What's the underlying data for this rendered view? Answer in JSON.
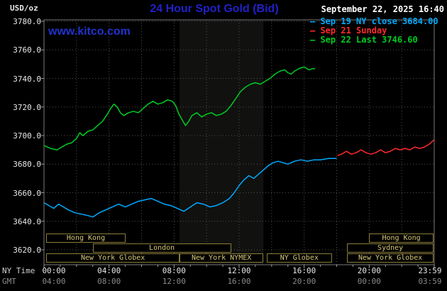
{
  "header": {
    "unit_label": "USD/oz",
    "title": "24 Hour Spot Gold (Bid)",
    "datetime": "September 22, 2025 16:40",
    "watermark": "www.kitco.com"
  },
  "colors": {
    "title_blue": "#2121c8",
    "watermark_blue": "#2233cc",
    "frame": "#7a7a7a",
    "grid": "#4f4f4f",
    "session_border": "#8a7d3a",
    "session_text": "#d8c878"
  },
  "legend": [
    {
      "label": "Sep 19 NY close 3684.00",
      "color": "#00aaff"
    },
    {
      "label": "Sep 21 Sunday",
      "color": "#ff2a2a"
    },
    {
      "label": "Sep 22 Last 3746.60",
      "color": "#00cc22"
    }
  ],
  "chart_data": {
    "type": "line",
    "title": "24 Hour Spot Gold (Bid)",
    "ylabel": "USD/oz",
    "xlabel_ny": "NY Time",
    "xlabel_gmt": "GMT",
    "ylim": [
      3620,
      3780
    ],
    "y_ticks": [
      3620,
      3640,
      3660,
      3680,
      3700,
      3720,
      3740,
      3760,
      3780
    ],
    "x_ticks": [
      {
        "hour": 0,
        "ny": "00:00",
        "gmt": "04:00"
      },
      {
        "hour": 4,
        "ny": "04:00",
        "gmt": "08:00"
      },
      {
        "hour": 8,
        "ny": "08:00",
        "gmt": "12:00"
      },
      {
        "hour": 12,
        "ny": "12:00",
        "gmt": "16:00"
      },
      {
        "hour": 16,
        "ny": "16:00",
        "gmt": "20:00"
      },
      {
        "hour": 20,
        "ny": "20:00",
        "gmt": "00:00"
      },
      {
        "hour": 23.98,
        "ny": "23:59",
        "gmt": "03:59"
      }
    ],
    "grid": true,
    "shaded_band": {
      "start_hour": 8.33,
      "end_hour": 13.5
    },
    "series": [
      {
        "name": "Sep 19 NY close",
        "color": "#00aaff",
        "close": 3684.0,
        "points": [
          [
            0,
            3653
          ],
          [
            0.3,
            3651
          ],
          [
            0.6,
            3649
          ],
          [
            0.9,
            3652
          ],
          [
            1.2,
            3650
          ],
          [
            1.5,
            3648
          ],
          [
            1.9,
            3646
          ],
          [
            2.3,
            3645
          ],
          [
            2.7,
            3644
          ],
          [
            3.0,
            3643
          ],
          [
            3.4,
            3646
          ],
          [
            3.8,
            3648
          ],
          [
            4.2,
            3650
          ],
          [
            4.6,
            3652
          ],
          [
            5.0,
            3650
          ],
          [
            5.4,
            3652
          ],
          [
            5.8,
            3654
          ],
          [
            6.2,
            3655
          ],
          [
            6.6,
            3656
          ],
          [
            7.0,
            3654
          ],
          [
            7.4,
            3652
          ],
          [
            7.8,
            3651
          ],
          [
            8.2,
            3649
          ],
          [
            8.6,
            3647
          ],
          [
            9.0,
            3650
          ],
          [
            9.4,
            3653
          ],
          [
            9.8,
            3652
          ],
          [
            10.2,
            3650
          ],
          [
            10.6,
            3651
          ],
          [
            11.0,
            3653
          ],
          [
            11.4,
            3656
          ],
          [
            11.7,
            3660
          ],
          [
            12.0,
            3665
          ],
          [
            12.3,
            3669
          ],
          [
            12.6,
            3672
          ],
          [
            12.9,
            3670
          ],
          [
            13.2,
            3673
          ],
          [
            13.5,
            3676
          ],
          [
            13.8,
            3679
          ],
          [
            14.1,
            3681
          ],
          [
            14.4,
            3682
          ],
          [
            14.7,
            3681
          ],
          [
            15.0,
            3680
          ],
          [
            15.4,
            3682
          ],
          [
            15.8,
            3683
          ],
          [
            16.2,
            3682
          ],
          [
            16.6,
            3683
          ],
          [
            17.0,
            3683
          ],
          [
            17.5,
            3684
          ],
          [
            18.0,
            3684
          ]
        ]
      },
      {
        "name": "Sep 21 Sunday",
        "color": "#ff2a2a",
        "points": [
          [
            18.05,
            3686
          ],
          [
            18.3,
            3687
          ],
          [
            18.6,
            3689
          ],
          [
            18.9,
            3687
          ],
          [
            19.2,
            3688
          ],
          [
            19.5,
            3690
          ],
          [
            19.8,
            3688
          ],
          [
            20.1,
            3687
          ],
          [
            20.4,
            3688
          ],
          [
            20.7,
            3690
          ],
          [
            21.0,
            3688
          ],
          [
            21.3,
            3689
          ],
          [
            21.6,
            3691
          ],
          [
            21.9,
            3690
          ],
          [
            22.2,
            3691
          ],
          [
            22.5,
            3690
          ],
          [
            22.8,
            3692
          ],
          [
            23.1,
            3691
          ],
          [
            23.4,
            3692
          ],
          [
            23.7,
            3694
          ],
          [
            23.9,
            3696
          ],
          [
            23.98,
            3697
          ]
        ]
      },
      {
        "name": "Sep 22 Last",
        "color": "#00cc22",
        "last": 3746.6,
        "points": [
          [
            0,
            3693
          ],
          [
            0.4,
            3691
          ],
          [
            0.8,
            3690
          ],
          [
            1.1,
            3692
          ],
          [
            1.4,
            3694
          ],
          [
            1.7,
            3695
          ],
          [
            2.0,
            3698
          ],
          [
            2.2,
            3702
          ],
          [
            2.4,
            3700
          ],
          [
            2.7,
            3703
          ],
          [
            3.0,
            3704
          ],
          [
            3.3,
            3707
          ],
          [
            3.6,
            3710
          ],
          [
            3.9,
            3715
          ],
          [
            4.1,
            3719
          ],
          [
            4.3,
            3722
          ],
          [
            4.5,
            3720
          ],
          [
            4.7,
            3716
          ],
          [
            4.9,
            3714
          ],
          [
            5.2,
            3716
          ],
          [
            5.5,
            3717
          ],
          [
            5.8,
            3716
          ],
          [
            6.1,
            3719
          ],
          [
            6.4,
            3722
          ],
          [
            6.7,
            3724
          ],
          [
            7.0,
            3722
          ],
          [
            7.3,
            3723
          ],
          [
            7.6,
            3725
          ],
          [
            7.9,
            3724
          ],
          [
            8.1,
            3721
          ],
          [
            8.3,
            3715
          ],
          [
            8.5,
            3711
          ],
          [
            8.7,
            3707
          ],
          [
            8.9,
            3710
          ],
          [
            9.1,
            3714
          ],
          [
            9.4,
            3716
          ],
          [
            9.7,
            3713
          ],
          [
            10.0,
            3715
          ],
          [
            10.3,
            3716
          ],
          [
            10.6,
            3714
          ],
          [
            10.9,
            3715
          ],
          [
            11.2,
            3717
          ],
          [
            11.5,
            3721
          ],
          [
            11.8,
            3726
          ],
          [
            12.1,
            3731
          ],
          [
            12.4,
            3734
          ],
          [
            12.7,
            3736
          ],
          [
            13.0,
            3737
          ],
          [
            13.3,
            3736
          ],
          [
            13.6,
            3738
          ],
          [
            13.9,
            3740
          ],
          [
            14.2,
            3743
          ],
          [
            14.5,
            3745
          ],
          [
            14.8,
            3746
          ],
          [
            15.0,
            3744
          ],
          [
            15.2,
            3743
          ],
          [
            15.4,
            3745
          ],
          [
            15.7,
            3747
          ],
          [
            16.0,
            3748
          ],
          [
            16.3,
            3746
          ],
          [
            16.55,
            3747
          ],
          [
            16.67,
            3746.6
          ]
        ]
      }
    ],
    "sessions": [
      {
        "row": 0,
        "start": 0.15,
        "end": 5.0,
        "label": "Hong Kong"
      },
      {
        "row": 0,
        "start": 20.0,
        "end": 23.95,
        "label": "Hong Kong"
      },
      {
        "row": 1,
        "start": 3.0,
        "end": 11.5,
        "label": "London"
      },
      {
        "row": 1,
        "start": 18.65,
        "end": 23.95,
        "label": "Sydney"
      },
      {
        "row": 2,
        "start": 0.15,
        "end": 8.33,
        "label": "New York Globex"
      },
      {
        "row": 2,
        "start": 8.33,
        "end": 13.5,
        "label": "New York NYMEX"
      },
      {
        "row": 2,
        "start": 13.7,
        "end": 17.7,
        "label": "NY Globex"
      },
      {
        "row": 2,
        "start": 18.65,
        "end": 23.95,
        "label": "New York Globex"
      }
    ]
  }
}
